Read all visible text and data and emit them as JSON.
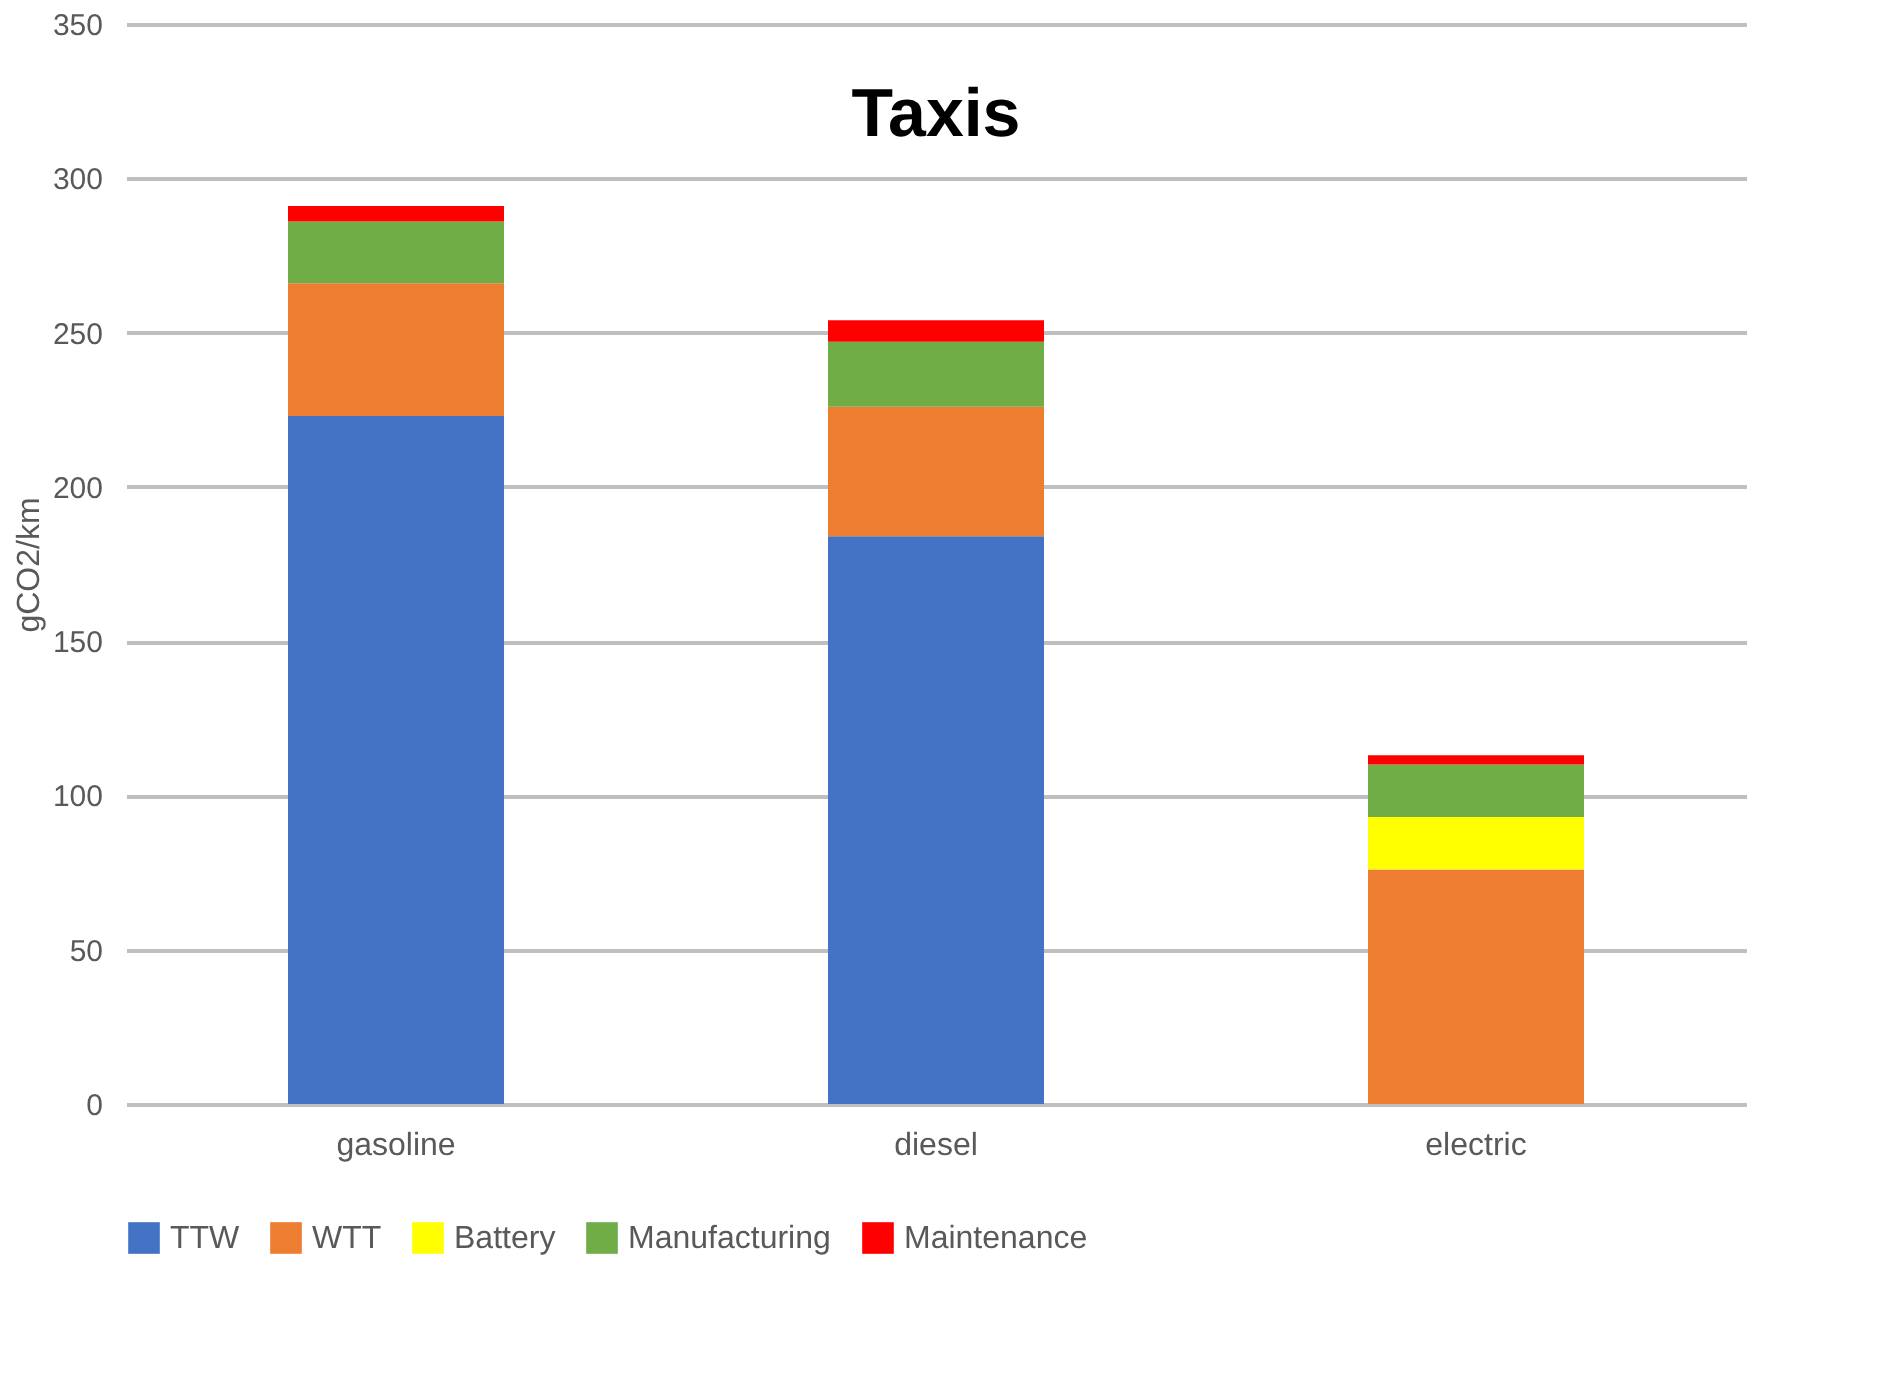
{
  "chart_data": {
    "type": "bar",
    "title": "Taxis",
    "ylabel": "gCO2/km",
    "stacked": true,
    "categories": [
      "gasoline",
      "diesel",
      "electric"
    ],
    "series": [
      {
        "name": "TTW",
        "color": "#4472c4",
        "values": [
          223,
          184,
          0
        ]
      },
      {
        "name": "WTT",
        "color": "#ed7d31",
        "values": [
          43,
          42,
          76
        ]
      },
      {
        "name": "Battery",
        "color": "#ffff00",
        "values": [
          0,
          0,
          17
        ]
      },
      {
        "name": "Manufacturing",
        "color": "#70ad47",
        "values": [
          20,
          21,
          17
        ]
      },
      {
        "name": "Maintenance",
        "color": "#ff0000",
        "values": [
          5,
          7,
          3
        ]
      }
    ],
    "ylim": [
      0,
      350
    ],
    "yticks": [
      0,
      50,
      100,
      150,
      200,
      250,
      300,
      350
    ],
    "grid": "y",
    "legend": "bottom"
  }
}
